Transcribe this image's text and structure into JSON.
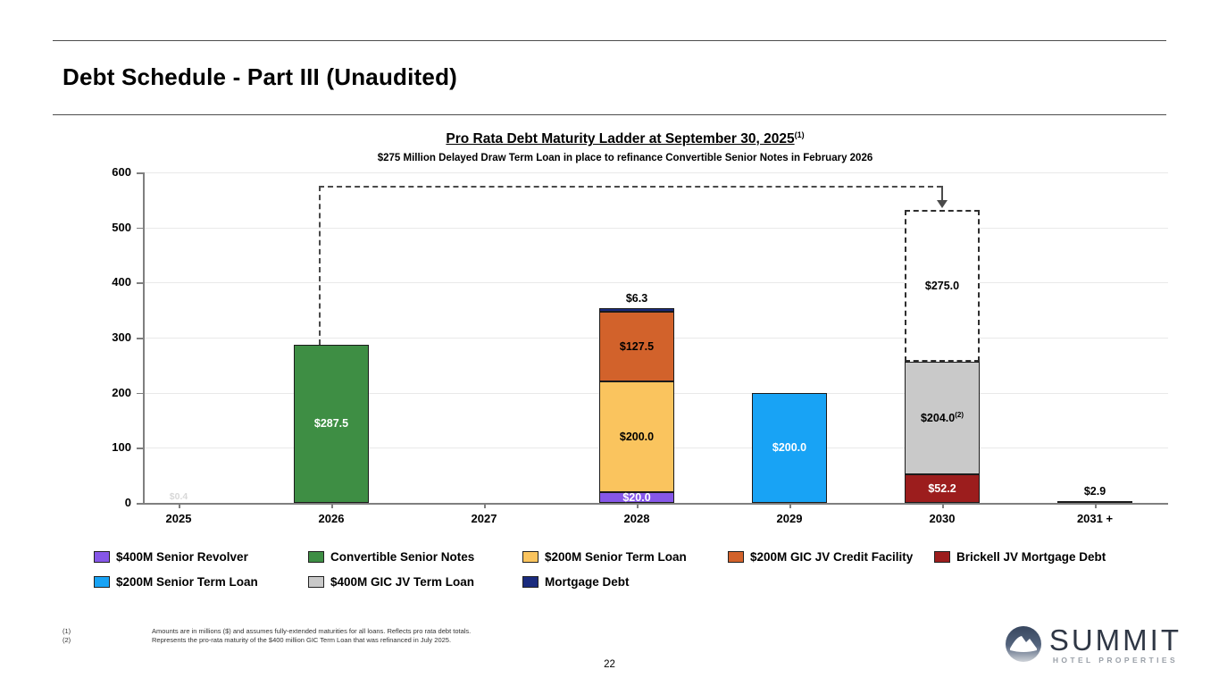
{
  "header": {
    "title": "Debt Schedule - Part III (Unaudited)"
  },
  "chart_data": {
    "type": "bar",
    "stacked": true,
    "title": "Pro Rata Debt Maturity Ladder at September 30, 2025",
    "title_superscript": "(1)",
    "subtitle": "$275 Million Delayed Draw Term Loan in place to refinance Convertible Senior Notes in February 2026",
    "ylim": [
      0,
      600
    ],
    "yticks": [
      0,
      100,
      200,
      300,
      400,
      500,
      600
    ],
    "grid": true,
    "legend_position": "bottom",
    "categories": [
      "2025",
      "2026",
      "2027",
      "2028",
      "2029",
      "2030",
      "2031 +"
    ],
    "colors": {
      "purple": "#8657E8",
      "green": "#3E8E44",
      "yellow": "#FAC45E",
      "orange": "#D2622B",
      "brickred": "#9C1D1D",
      "blue": "#18A3F5",
      "gray": "#C9C9C9",
      "navy": "#1A2B7E",
      "dashed_white": "#FFFFFF"
    },
    "bars": [
      {
        "category": "2025",
        "segments": [],
        "ghost_label": "$0.4"
      },
      {
        "category": "2026",
        "segments": [
          {
            "series": "Convertible Senior Notes",
            "value": 287.5,
            "label": "$287.5",
            "color_key": "green",
            "text": "white"
          }
        ]
      },
      {
        "category": "2027",
        "segments": []
      },
      {
        "category": "2028",
        "segments": [
          {
            "series": "$400M Senior Revolver",
            "value": 20.0,
            "label": "$20.0",
            "color_key": "purple",
            "text": "white"
          },
          {
            "series": "$200M Senior Term Loan",
            "value": 200.0,
            "label": "$200.0",
            "color_key": "yellow",
            "text": "black"
          },
          {
            "series": "$200M GIC JV Credit Facility",
            "value": 127.5,
            "label": "$127.5",
            "color_key": "orange",
            "text": "black"
          },
          {
            "series": "Mortgage Debt",
            "value": 6.3,
            "label": "$6.3",
            "color_key": "navy",
            "label_outside": true
          }
        ]
      },
      {
        "category": "2029",
        "segments": [
          {
            "series": "$200M Senior Term Loan",
            "value": 200.0,
            "label": "$200.0",
            "color_key": "blue",
            "text": "white"
          }
        ]
      },
      {
        "category": "2030",
        "segments": [
          {
            "series": "Brickell JV Mortgage Debt",
            "value": 52.2,
            "label": "$52.2",
            "color_key": "brickred",
            "text": "white"
          },
          {
            "series": "$400M GIC JV Term Loan",
            "value": 204.0,
            "label": "$204.0",
            "label_superscript": "(2)",
            "color_key": "gray",
            "text": "black"
          },
          {
            "series": "$275M Delayed Draw Term Loan",
            "value": 275.0,
            "label": "$275.0",
            "color_key": "dashed_white",
            "text": "black",
            "dashed": true
          }
        ]
      },
      {
        "category": "2031 +",
        "segments": [
          {
            "series": "Mortgage Debt",
            "value": 2.9,
            "label": "$2.9",
            "color_key": "navy",
            "label_outside": true
          }
        ]
      }
    ],
    "connector": {
      "from_category": "2026",
      "to_category": "2030",
      "level": 575
    },
    "legend": {
      "rows": [
        [
          {
            "label": "$400M Senior Revolver",
            "color_key": "purple"
          },
          {
            "label": "Convertible Senior Notes",
            "color_key": "green"
          },
          {
            "label": "$200M Senior Term Loan",
            "color_key": "yellow"
          },
          {
            "label": "$200M GIC JV Credit Facility",
            "color_key": "orange"
          },
          {
            "label": "Brickell JV Mortgage Debt",
            "color_key": "brickred"
          }
        ],
        [
          {
            "label": "$200M Senior Term Loan",
            "color_key": "blue"
          },
          {
            "label": "$400M GIC JV Term Loan",
            "color_key": "gray"
          },
          {
            "label": "Mortgage Debt",
            "color_key": "navy"
          }
        ]
      ]
    }
  },
  "footnotes": [
    {
      "marker": "(1)",
      "text": "Amounts are in millions ($) and assumes fully-extended maturities for all loans. Reflects pro rata debt totals."
    },
    {
      "marker": "(2)",
      "text": "Represents the pro-rata maturity of the $400 million GIC Term Loan that was refinanced in July 2025."
    }
  ],
  "footer": {
    "page_number": "22",
    "logo": {
      "name": "SUMMIT",
      "tagline": "HOTEL PROPERTIES"
    }
  }
}
